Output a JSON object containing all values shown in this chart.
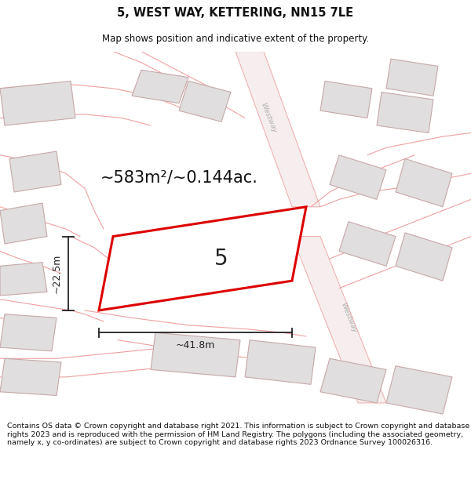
{
  "title": "5, WEST WAY, KETTERING, NN15 7LE",
  "subtitle": "Map shows position and indicative extent of the property.",
  "footer": "Contains OS data © Crown copyright and database right 2021. This information is subject to Crown copyright and database rights 2023 and is reproduced with the permission of HM Land Registry. The polygons (including the associated geometry, namely x, y co-ordinates) are subject to Crown copyright and database rights 2023 Ordnance Survey 100026316.",
  "area_text": "~583m²/~0.144ac.",
  "plot_label": "5",
  "dim_width": "~41.8m",
  "dim_height": "~22.5m",
  "title_fontsize": 10.5,
  "subtitle_fontsize": 8.5,
  "footer_fontsize": 6.8,
  "area_fontsize": 15,
  "label_fontsize": 20,
  "dim_fontsize": 9,
  "bg_color": "#ffffff",
  "map_bg": "#ffffff",
  "plot_fill": "#ffffff",
  "plot_edge": "#dd0000",
  "building_fill": "#e0dede",
  "building_edge": "#c8a8a8",
  "road_line": "#f0a0a0",
  "road_fill": "#f5eded",
  "dim_color": "#222222",
  "westway_color": "#b0b0b0"
}
